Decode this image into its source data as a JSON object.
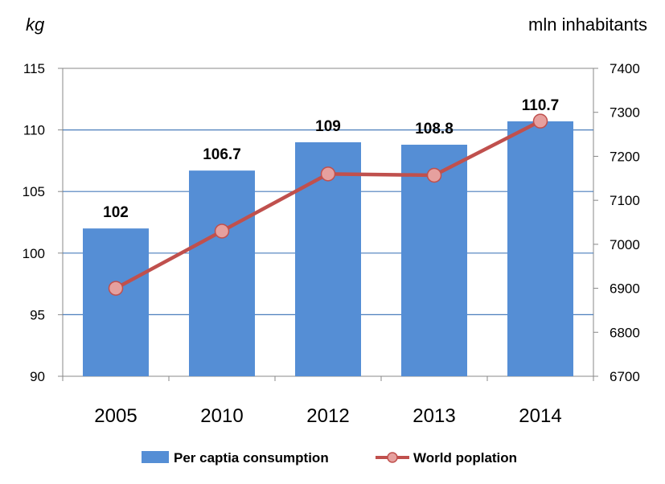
{
  "chart_data": {
    "type": "bar",
    "categories": [
      "2005",
      "2010",
      "2012",
      "2013",
      "2014"
    ],
    "series": [
      {
        "name": "Per captia consumption",
        "kind": "bar",
        "axis": "left",
        "values": [
          102,
          106.7,
          109,
          108.8,
          110.7
        ],
        "labels": [
          "102",
          "106.7",
          "109",
          "108.8",
          "110.7"
        ],
        "color": "#558ED5"
      },
      {
        "name": "World poplation",
        "kind": "line",
        "axis": "right",
        "values": [
          6900,
          7030,
          7160,
          7157,
          7280
        ],
        "color": "#C0504D",
        "marker_color": "#E6A09E"
      }
    ],
    "y_left": {
      "unit": "kg",
      "ticks": [
        "90",
        "95",
        "100",
        "105",
        "110",
        "115"
      ],
      "ylim": [
        90,
        115
      ]
    },
    "y_right": {
      "unit": "mln inhabitants",
      "ticks": [
        "6700",
        "6800",
        "6900",
        "7000",
        "7100",
        "7200",
        "7300",
        "7400"
      ],
      "ylim": [
        6700,
        7400
      ]
    },
    "grid": true,
    "legend_position": "bottom"
  }
}
